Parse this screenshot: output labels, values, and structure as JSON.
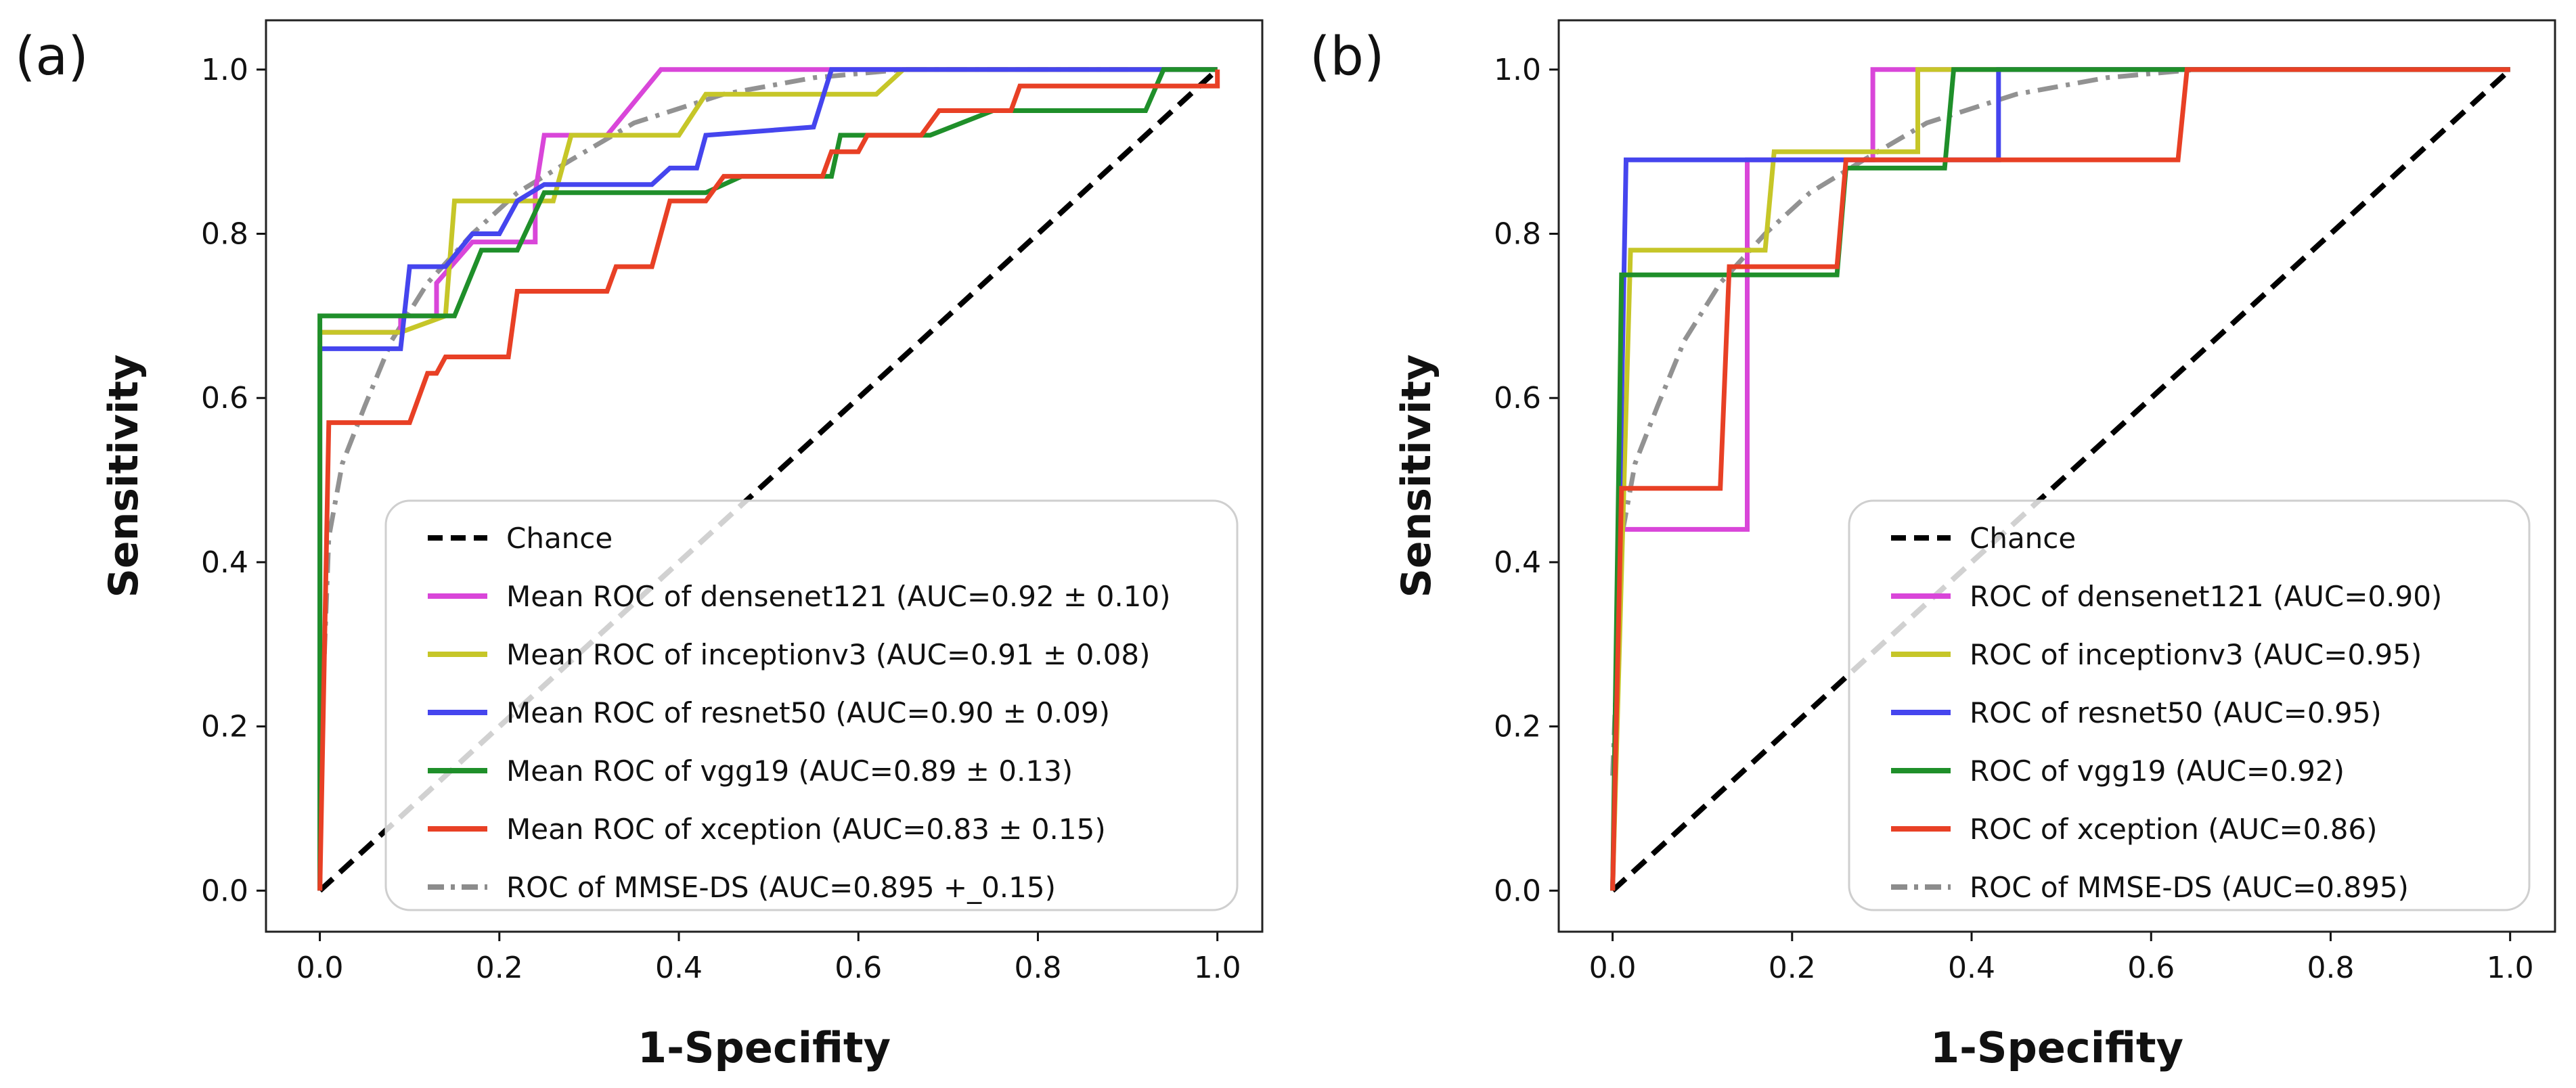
{
  "chart_data": [
    {
      "panel_label": "(a)",
      "type": "line",
      "xlabel": "1-Specifity",
      "ylabel": "Sensitivity",
      "xlim": [
        -0.06,
        1.05
      ],
      "ylim": [
        -0.05,
        1.06
      ],
      "x_ticks": [
        "0.0",
        "0.2",
        "0.4",
        "0.6",
        "0.8",
        "1.0"
      ],
      "y_ticks": [
        "0.0",
        "0.2",
        "0.4",
        "0.6",
        "0.8",
        "1.0"
      ],
      "legend_position": "lower-right",
      "series": [
        {
          "name": "Chance",
          "color": "#000000",
          "style": "dashed",
          "points": [
            [
              0,
              0
            ],
            [
              1,
              1
            ]
          ]
        },
        {
          "name": "Mean ROC of densenet121 (AUC=0.92 ± 0.10)",
          "color": "#d946d9",
          "style": "solid",
          "points": [
            [
              0,
              0
            ],
            [
              0,
              0.68
            ],
            [
              0.09,
              0.68
            ],
            [
              0.09,
              0.7
            ],
            [
              0.13,
              0.7
            ],
            [
              0.13,
              0.74
            ],
            [
              0.17,
              0.79
            ],
            [
              0.24,
              0.79
            ],
            [
              0.24,
              0.85
            ],
            [
              0.25,
              0.92
            ],
            [
              0.32,
              0.92
            ],
            [
              0.38,
              1.0
            ],
            [
              1.0,
              1.0
            ]
          ]
        },
        {
          "name": "Mean ROC of inceptionv3 (AUC=0.91 ± 0.08)",
          "color": "#c6c628",
          "style": "solid",
          "points": [
            [
              0,
              0
            ],
            [
              0,
              0.68
            ],
            [
              0.09,
              0.68
            ],
            [
              0.14,
              0.7
            ],
            [
              0.15,
              0.84
            ],
            [
              0.26,
              0.84
            ],
            [
              0.28,
              0.92
            ],
            [
              0.4,
              0.92
            ],
            [
              0.43,
              0.97
            ],
            [
              0.62,
              0.97
            ],
            [
              0.65,
              1.0
            ],
            [
              1.0,
              1.0
            ]
          ]
        },
        {
          "name": "Mean ROC of resnet50 (AUC=0.90 ± 0.09)",
          "color": "#4545ee",
          "style": "solid",
          "points": [
            [
              0,
              0
            ],
            [
              0,
              0.66
            ],
            [
              0.09,
              0.66
            ],
            [
              0.1,
              0.76
            ],
            [
              0.14,
              0.76
            ],
            [
              0.17,
              0.8
            ],
            [
              0.2,
              0.8
            ],
            [
              0.22,
              0.84
            ],
            [
              0.25,
              0.86
            ],
            [
              0.37,
              0.86
            ],
            [
              0.39,
              0.88
            ],
            [
              0.42,
              0.88
            ],
            [
              0.43,
              0.92
            ],
            [
              0.55,
              0.93
            ],
            [
              0.57,
              1.0
            ],
            [
              1.0,
              1.0
            ]
          ]
        },
        {
          "name": "Mean ROC of vgg19 (AUC=0.89 ± 0.13)",
          "color": "#1f8f2a",
          "style": "solid",
          "points": [
            [
              0,
              0
            ],
            [
              0,
              0.7
            ],
            [
              0.15,
              0.7
            ],
            [
              0.18,
              0.78
            ],
            [
              0.22,
              0.78
            ],
            [
              0.25,
              0.85
            ],
            [
              0.43,
              0.85
            ],
            [
              0.47,
              0.87
            ],
            [
              0.57,
              0.87
            ],
            [
              0.58,
              0.92
            ],
            [
              0.68,
              0.92
            ],
            [
              0.75,
              0.95
            ],
            [
              0.92,
              0.95
            ],
            [
              0.94,
              1.0
            ],
            [
              1.0,
              1.0
            ]
          ]
        },
        {
          "name": "Mean ROC of xception (AUC=0.83 ± 0.15)",
          "color": "#e84025",
          "style": "solid",
          "points": [
            [
              0,
              0
            ],
            [
              0.01,
              0.57
            ],
            [
              0.1,
              0.57
            ],
            [
              0.12,
              0.63
            ],
            [
              0.13,
              0.63
            ],
            [
              0.14,
              0.65
            ],
            [
              0.21,
              0.65
            ],
            [
              0.22,
              0.73
            ],
            [
              0.32,
              0.73
            ],
            [
              0.33,
              0.76
            ],
            [
              0.37,
              0.76
            ],
            [
              0.39,
              0.84
            ],
            [
              0.43,
              0.84
            ],
            [
              0.45,
              0.87
            ],
            [
              0.56,
              0.87
            ],
            [
              0.57,
              0.9
            ],
            [
              0.6,
              0.9
            ],
            [
              0.61,
              0.92
            ],
            [
              0.67,
              0.92
            ],
            [
              0.69,
              0.95
            ],
            [
              0.77,
              0.95
            ],
            [
              0.78,
              0.98
            ],
            [
              1.0,
              0.98
            ],
            [
              1.0,
              1.0
            ]
          ]
        },
        {
          "name": "ROC of MMSE-DS (AUC=0.895 +_0.15)",
          "color": "#8c8c8c",
          "style": "dashdot",
          "points": [
            [
              0,
              0.14
            ],
            [
              0.01,
              0.43
            ],
            [
              0.025,
              0.52
            ],
            [
              0.05,
              0.59
            ],
            [
              0.08,
              0.67
            ],
            [
              0.12,
              0.74
            ],
            [
              0.17,
              0.8
            ],
            [
              0.22,
              0.85
            ],
            [
              0.28,
              0.89
            ],
            [
              0.35,
              0.935
            ],
            [
              0.45,
              0.97
            ],
            [
              0.55,
              0.99
            ],
            [
              0.65,
              1.0
            ],
            [
              0.9,
              1.0
            ]
          ]
        }
      ]
    },
    {
      "panel_label": "(b)",
      "type": "line",
      "xlabel": "1-Specifity",
      "ylabel": "Sensitivity",
      "xlim": [
        -0.06,
        1.05
      ],
      "ylim": [
        -0.05,
        1.06
      ],
      "x_ticks": [
        "0.0",
        "0.2",
        "0.4",
        "0.6",
        "0.8",
        "1.0"
      ],
      "y_ticks": [
        "0.0",
        "0.2",
        "0.4",
        "0.6",
        "0.8",
        "1.0"
      ],
      "legend_position": "lower-right",
      "series": [
        {
          "name": "Chance",
          "color": "#000000",
          "style": "dashed",
          "points": [
            [
              0,
              0
            ],
            [
              1,
              1
            ]
          ]
        },
        {
          "name": "ROC of densenet121 (AUC=0.90)",
          "color": "#d946d9",
          "style": "solid",
          "points": [
            [
              0,
              0
            ],
            [
              0.01,
              0.44
            ],
            [
              0.15,
              0.44
            ],
            [
              0.15,
              0.89
            ],
            [
              0.29,
              0.89
            ],
            [
              0.29,
              1.0
            ],
            [
              1.0,
              1.0
            ]
          ]
        },
        {
          "name": "ROC of inceptionv3 (AUC=0.95)",
          "color": "#c6c628",
          "style": "solid",
          "points": [
            [
              0,
              0
            ],
            [
              0.02,
              0.78
            ],
            [
              0.17,
              0.78
            ],
            [
              0.18,
              0.9
            ],
            [
              0.29,
              0.9
            ],
            [
              0.34,
              0.9
            ],
            [
              0.34,
              1.0
            ],
            [
              1.0,
              1.0
            ]
          ]
        },
        {
          "name": "ROC of resnet50 (AUC=0.95)",
          "color": "#4545ee",
          "style": "solid",
          "points": [
            [
              0,
              0
            ],
            [
              0.015,
              0.89
            ],
            [
              0.43,
              0.89
            ],
            [
              0.43,
              1.0
            ],
            [
              1.0,
              1.0
            ]
          ]
        },
        {
          "name": "ROC of vgg19 (AUC=0.92)",
          "color": "#1f8f2a",
          "style": "solid",
          "points": [
            [
              0,
              0
            ],
            [
              0.01,
              0.75
            ],
            [
              0.25,
              0.75
            ],
            [
              0.26,
              0.88
            ],
            [
              0.37,
              0.88
            ],
            [
              0.38,
              1.0
            ],
            [
              1.0,
              1.0
            ]
          ]
        },
        {
          "name": "ROC of xception (AUC=0.86)",
          "color": "#e84025",
          "style": "solid",
          "points": [
            [
              0,
              0
            ],
            [
              0.01,
              0.49
            ],
            [
              0.12,
              0.49
            ],
            [
              0.13,
              0.76
            ],
            [
              0.25,
              0.76
            ],
            [
              0.26,
              0.89
            ],
            [
              0.63,
              0.89
            ],
            [
              0.64,
              1.0
            ],
            [
              1.0,
              1.0
            ]
          ]
        },
        {
          "name": "ROC of MMSE-DS (AUC=0.895)",
          "color": "#8c8c8c",
          "style": "dashdot",
          "points": [
            [
              0,
              0.14
            ],
            [
              0.01,
              0.43
            ],
            [
              0.025,
              0.52
            ],
            [
              0.05,
              0.59
            ],
            [
              0.08,
              0.67
            ],
            [
              0.12,
              0.74
            ],
            [
              0.17,
              0.8
            ],
            [
              0.22,
              0.85
            ],
            [
              0.28,
              0.89
            ],
            [
              0.35,
              0.935
            ],
            [
              0.45,
              0.97
            ],
            [
              0.55,
              0.99
            ],
            [
              0.65,
              1.0
            ]
          ]
        }
      ]
    }
  ]
}
